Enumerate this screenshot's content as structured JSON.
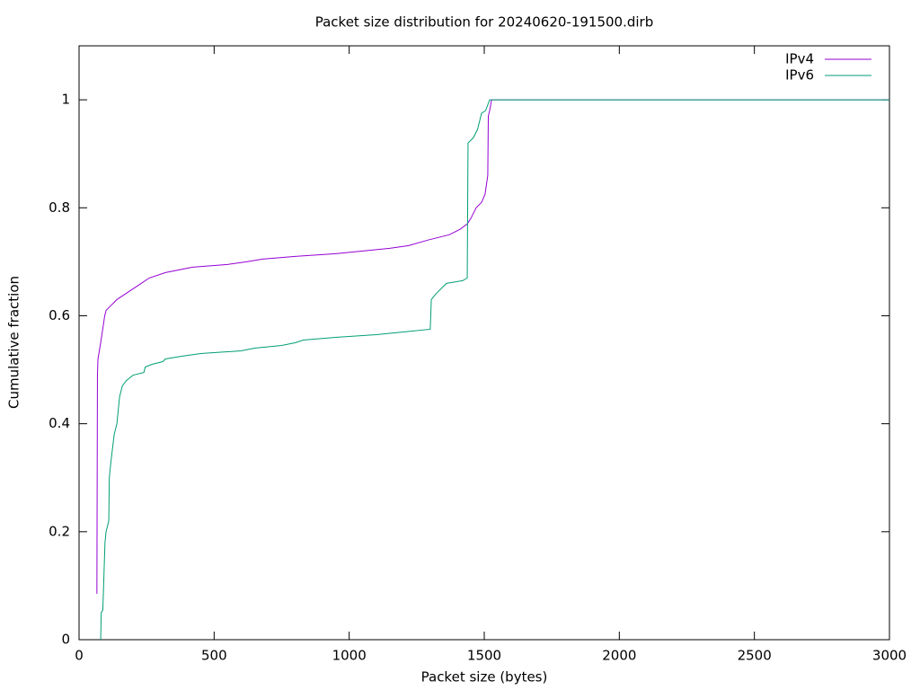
{
  "chart_data": {
    "type": "line",
    "title": "Packet size distribution for 20240620-191500.dirb",
    "xlabel": "Packet size (bytes)",
    "ylabel": "Cumulative fraction",
    "xlim": [
      0,
      3000
    ],
    "ylim": [
      0,
      1.1
    ],
    "xticks": [
      0,
      500,
      1000,
      1500,
      2000,
      2500,
      3000
    ],
    "yticks": [
      0,
      0.2,
      0.4,
      0.6,
      0.8,
      1
    ],
    "legend": "top-right",
    "series": [
      {
        "name": "IPv4",
        "color": "#9400d3",
        "x": [
          66,
          68,
          70,
          80,
          95,
          100,
          120,
          140,
          170,
          200,
          230,
          260,
          320,
          420,
          550,
          620,
          680,
          800,
          950,
          1050,
          1150,
          1220,
          1290,
          1370,
          1410,
          1437,
          1450,
          1470,
          1490,
          1503,
          1513,
          1515,
          1520,
          1527,
          3000
        ],
        "values": [
          0.085,
          0.49,
          0.52,
          0.55,
          0.6,
          0.61,
          0.62,
          0.63,
          0.64,
          0.65,
          0.66,
          0.67,
          0.68,
          0.69,
          0.695,
          0.7,
          0.705,
          0.71,
          0.715,
          0.72,
          0.725,
          0.73,
          0.74,
          0.75,
          0.76,
          0.77,
          0.78,
          0.8,
          0.81,
          0.825,
          0.86,
          0.97,
          0.98,
          1.0,
          1.0
        ]
      },
      {
        "name": "IPv6",
        "color": "#009e73",
        "x": [
          80,
          82,
          88,
          96,
          100,
          110,
          112,
          118,
          130,
          140,
          150,
          160,
          175,
          200,
          240,
          245,
          270,
          310,
          320,
          380,
          450,
          600,
          650,
          750,
          800,
          830,
          950,
          1100,
          1200,
          1300,
          1304,
          1320,
          1350,
          1360,
          1420,
          1437,
          1440,
          1460,
          1475,
          1490,
          1505,
          1520,
          3000
        ],
        "values": [
          0,
          0.05,
          0.055,
          0.18,
          0.2,
          0.22,
          0.3,
          0.33,
          0.38,
          0.4,
          0.45,
          0.47,
          0.48,
          0.49,
          0.495,
          0.505,
          0.51,
          0.515,
          0.52,
          0.525,
          0.53,
          0.535,
          0.54,
          0.545,
          0.55,
          0.555,
          0.56,
          0.565,
          0.57,
          0.575,
          0.63,
          0.64,
          0.655,
          0.66,
          0.665,
          0.67,
          0.92,
          0.93,
          0.945,
          0.975,
          0.98,
          1.0,
          1.0
        ]
      }
    ]
  }
}
